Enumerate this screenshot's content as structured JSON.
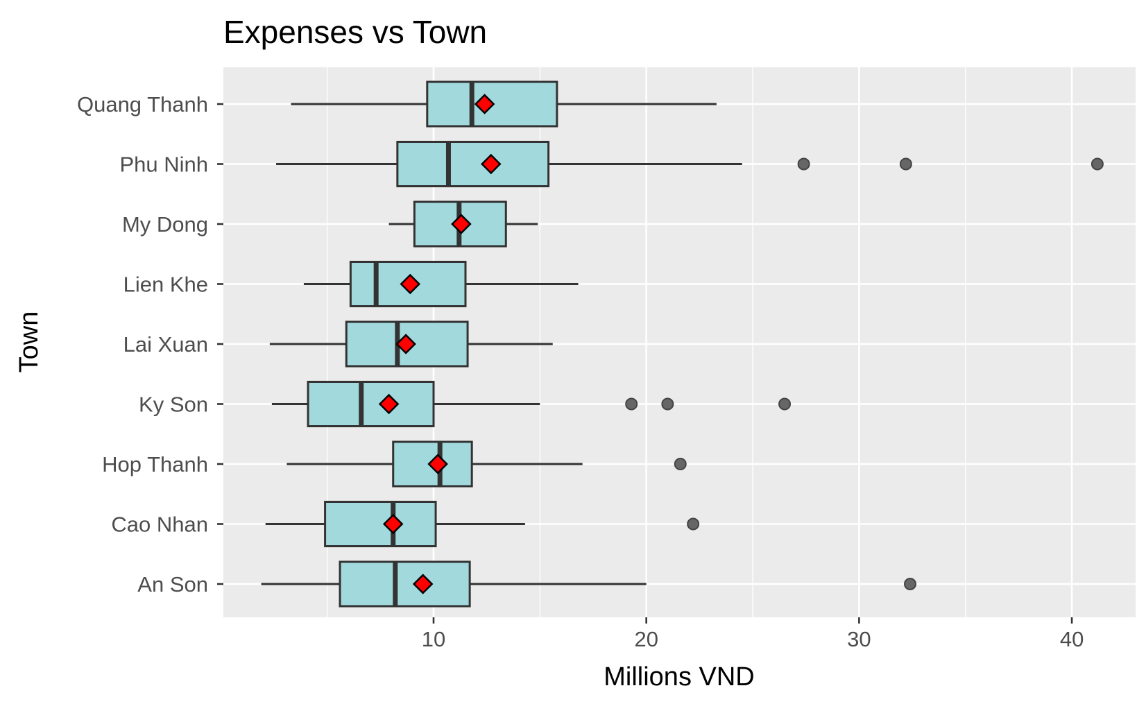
{
  "chart_data": {
    "type": "boxplot",
    "orientation": "horizontal",
    "title": "Expenses vs Town",
    "xlabel": "Millions VND",
    "ylabel": "Town",
    "xlim": [
      0,
      43
    ],
    "x_ticks": [
      10,
      20,
      30,
      40
    ],
    "x_minor_ticks": [
      5,
      15,
      25,
      35
    ],
    "grid": true,
    "legend": "none",
    "colors": {
      "panel_background": "#ebebeb",
      "box_fill": "#a1d9dc",
      "box_outline": "#333333",
      "mean_marker": "#ff0000",
      "outlier": "#666666"
    },
    "categories": [
      "Quang Thanh",
      "Phu Ninh",
      "My Dong",
      "Lien Khe",
      "Lai Xuan",
      "Ky Son",
      "Hop Thanh",
      "Cao Nhan",
      "An Son"
    ],
    "boxes": [
      {
        "name": "Quang Thanh",
        "whisker_low": 3.3,
        "q1": 9.7,
        "median": 11.8,
        "q3": 15.8,
        "whisker_high": 23.3,
        "mean": 12.4,
        "outliers": []
      },
      {
        "name": "Phu Ninh",
        "whisker_low": 2.6,
        "q1": 8.3,
        "median": 10.7,
        "q3": 15.4,
        "whisker_high": 24.5,
        "mean": 12.7,
        "outliers": [
          27.4,
          32.2,
          41.2
        ]
      },
      {
        "name": "My Dong",
        "whisker_low": 7.9,
        "q1": 9.1,
        "median": 11.2,
        "q3": 13.4,
        "whisker_high": 14.9,
        "mean": 11.3,
        "outliers": []
      },
      {
        "name": "Lien Khe",
        "whisker_low": 3.9,
        "q1": 6.1,
        "median": 7.3,
        "q3": 11.5,
        "whisker_high": 16.8,
        "mean": 8.9,
        "outliers": []
      },
      {
        "name": "Lai Xuan",
        "whisker_low": 2.3,
        "q1": 5.9,
        "median": 8.3,
        "q3": 11.6,
        "whisker_high": 15.6,
        "mean": 8.7,
        "outliers": []
      },
      {
        "name": "Ky Son",
        "whisker_low": 2.4,
        "q1": 4.1,
        "median": 6.6,
        "q3": 10.0,
        "whisker_high": 15.0,
        "mean": 7.9,
        "outliers": [
          19.3,
          21.0,
          26.5
        ]
      },
      {
        "name": "Hop Thanh",
        "whisker_low": 3.1,
        "q1": 8.1,
        "median": 10.3,
        "q3": 11.8,
        "whisker_high": 17.0,
        "mean": 10.2,
        "outliers": [
          21.6
        ]
      },
      {
        "name": "Cao Nhan",
        "whisker_low": 2.1,
        "q1": 4.9,
        "median": 8.1,
        "q3": 10.1,
        "whisker_high": 14.3,
        "mean": 8.1,
        "outliers": [
          22.2
        ]
      },
      {
        "name": "An Son",
        "whisker_low": 1.9,
        "q1": 5.6,
        "median": 8.2,
        "q3": 11.7,
        "whisker_high": 20.0,
        "mean": 9.5,
        "outliers": [
          32.4
        ]
      }
    ]
  }
}
